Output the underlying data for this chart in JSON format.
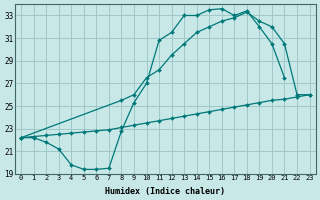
{
  "xlabel": "Humidex (Indice chaleur)",
  "bg_color": "#c8e8e8",
  "grid_color": "#a0c8c8",
  "line_color": "#007878",
  "xlim": [
    -0.5,
    23.5
  ],
  "ylim": [
    19,
    34
  ],
  "yticks": [
    19,
    21,
    23,
    25,
    27,
    29,
    31,
    33
  ],
  "xticks": [
    0,
    1,
    2,
    3,
    4,
    5,
    6,
    7,
    8,
    9,
    10,
    11,
    12,
    13,
    14,
    15,
    16,
    17,
    18,
    19,
    20,
    21,
    22,
    23
  ],
  "line1_x": [
    0,
    1,
    2,
    3,
    4,
    5,
    6,
    7,
    8,
    9,
    10,
    11,
    12,
    13,
    14,
    15,
    16,
    17,
    18,
    19,
    20,
    21
  ],
  "line1_y": [
    22.2,
    22.2,
    21.8,
    21.2,
    19.8,
    19.4,
    19.4,
    19.5,
    22.8,
    25.3,
    27.0,
    30.8,
    31.5,
    33.0,
    33.0,
    33.5,
    33.6,
    33.0,
    33.4,
    32.0,
    30.5,
    27.5
  ],
  "line2_x": [
    0,
    1,
    2,
    3,
    4,
    5,
    6,
    7,
    8,
    9,
    10,
    11,
    12,
    13,
    14,
    15,
    16,
    17,
    18,
    19,
    20,
    21,
    22,
    23
  ],
  "line2_y": [
    22.2,
    22.3,
    22.4,
    22.5,
    22.6,
    22.7,
    22.8,
    22.9,
    23.1,
    23.3,
    23.5,
    23.7,
    23.9,
    24.1,
    24.3,
    24.5,
    24.7,
    24.9,
    25.1,
    25.3,
    25.5,
    25.6,
    25.8,
    26.0
  ],
  "line3_x": [
    0,
    8,
    9,
    10,
    11,
    12,
    13,
    14,
    15,
    16,
    17,
    18,
    19,
    20,
    21,
    22,
    23
  ],
  "line3_y": [
    22.2,
    25.5,
    26.0,
    27.5,
    28.2,
    29.5,
    30.5,
    31.5,
    32.0,
    32.5,
    32.8,
    33.3,
    32.5,
    32.0,
    30.5,
    26.0,
    26.0
  ]
}
